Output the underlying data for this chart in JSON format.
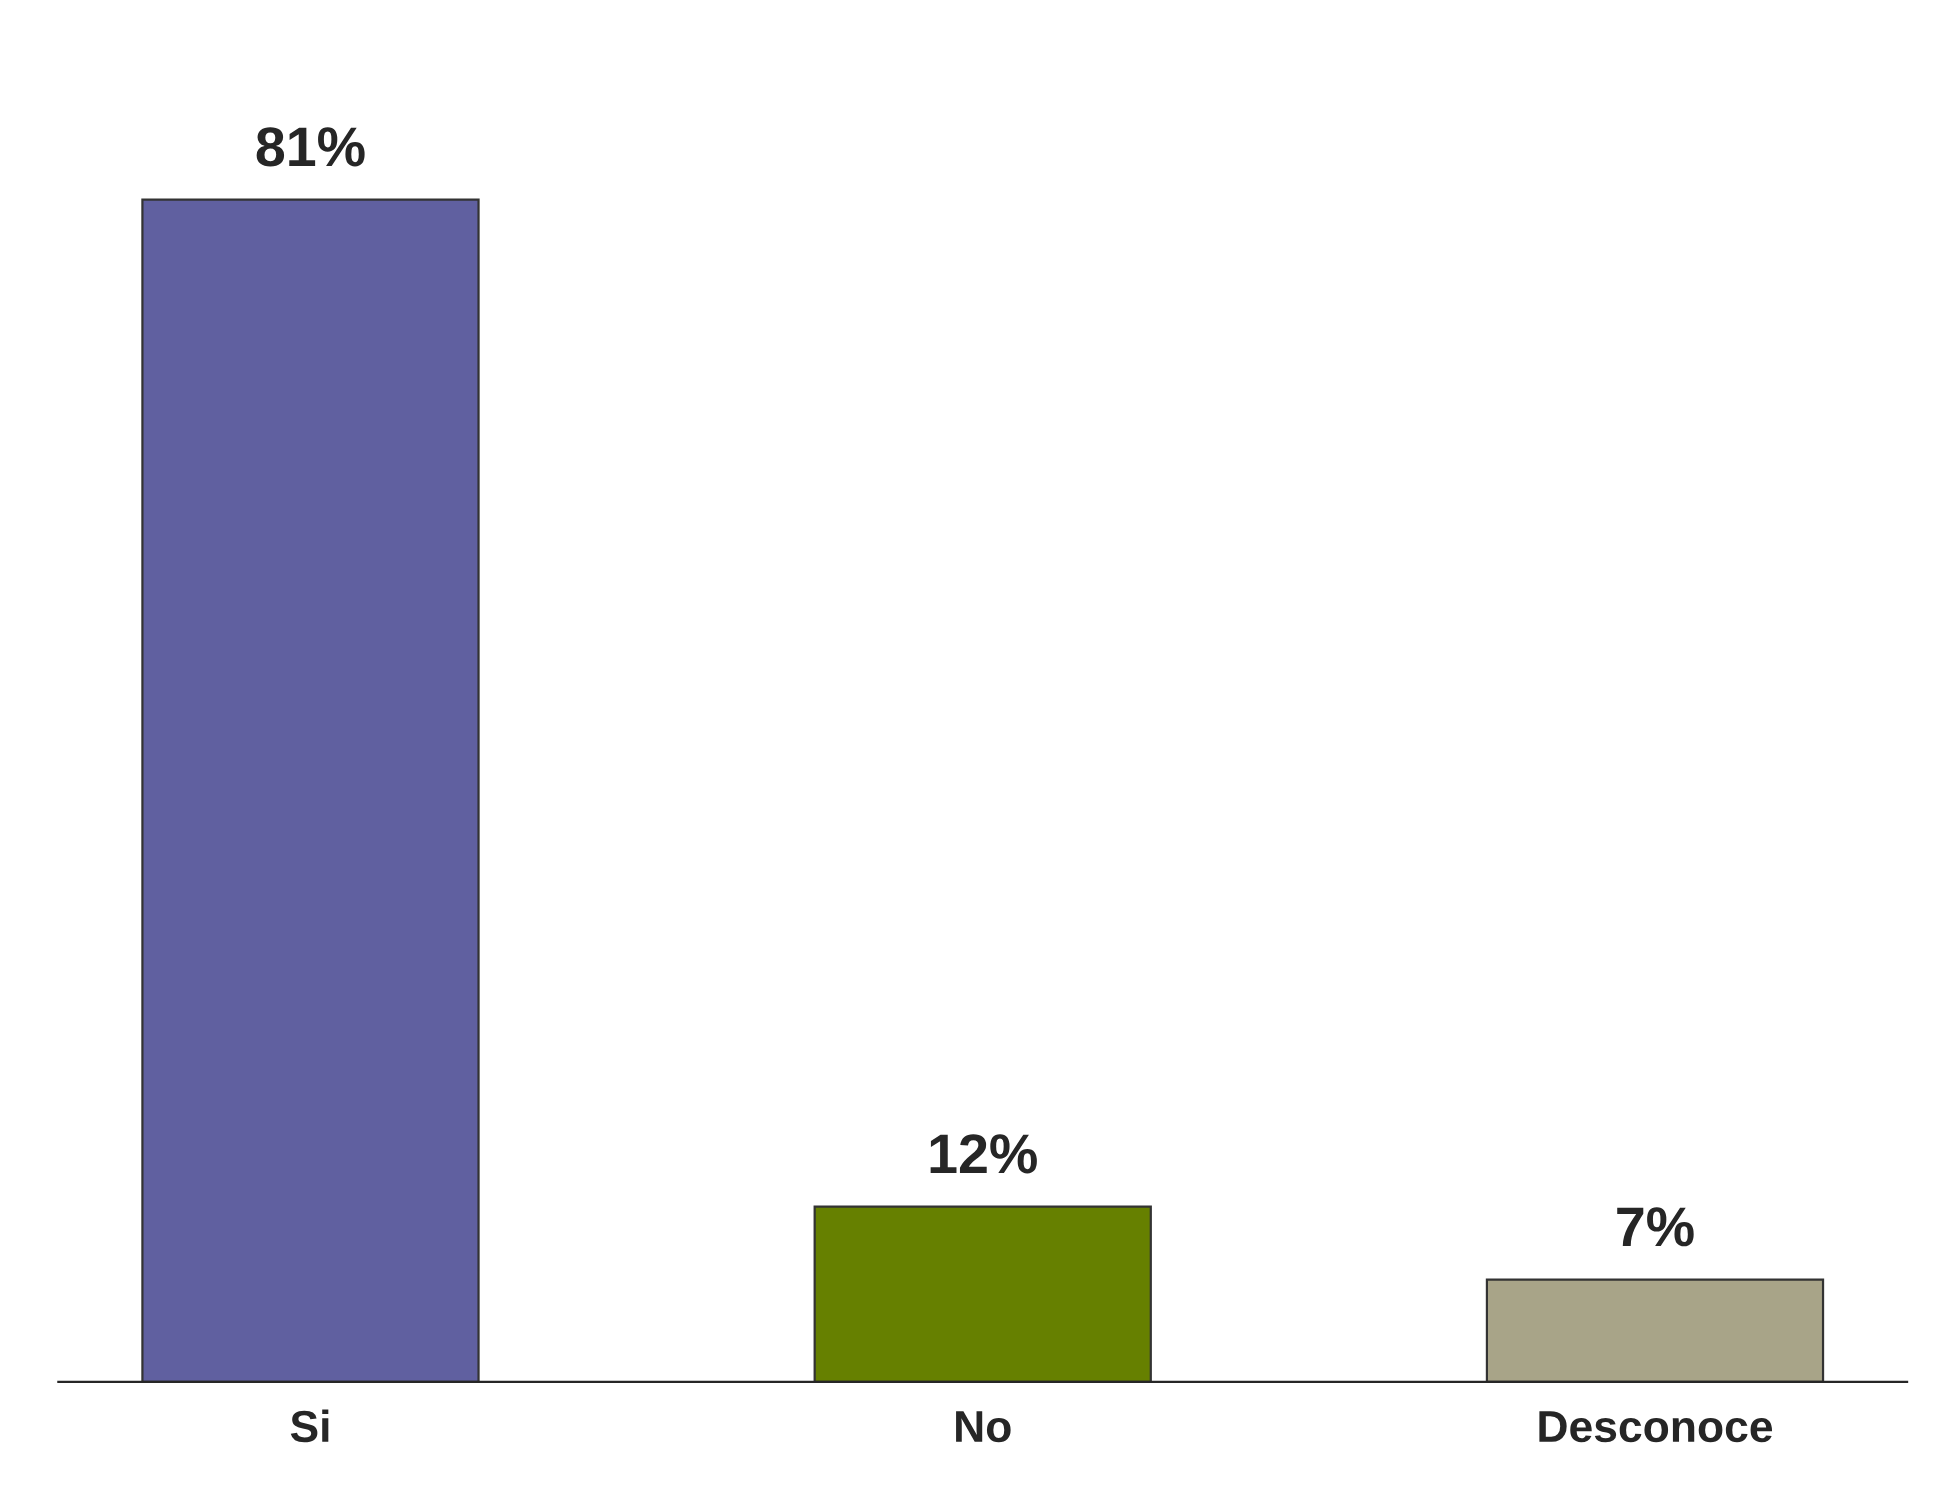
{
  "chart_data": {
    "type": "bar",
    "categories": [
      "Si",
      "No",
      "Desconoce"
    ],
    "values": [
      81,
      12,
      7
    ],
    "value_labels": [
      "81%",
      "12%",
      "7%"
    ],
    "colors": [
      "#6060a0",
      "#668000",
      "#a8a488"
    ]
  }
}
